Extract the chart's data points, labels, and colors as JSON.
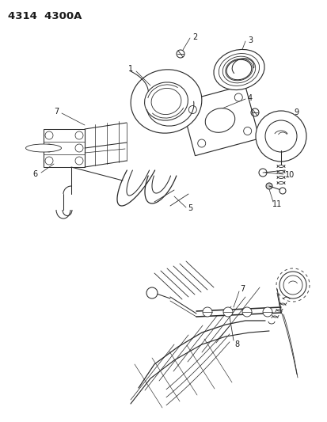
{
  "title": "4314  4300A",
  "background_color": "#ffffff",
  "text_color": "#1a1a1a",
  "figsize": [
    4.14,
    5.33
  ],
  "dpi": 100,
  "line_color": "#2a2a2a",
  "lw": 0.75
}
